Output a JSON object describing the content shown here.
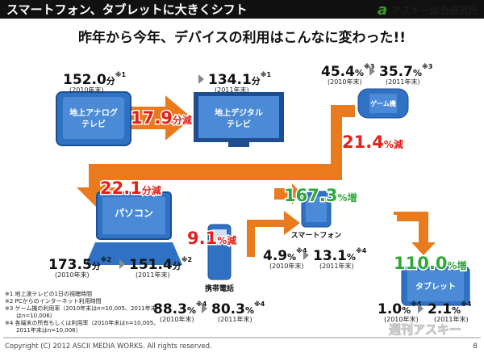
{
  "header": {
    "title": "スマートフォン、タブレットに大きくシフト",
    "brand": "アスキー総合研究所"
  },
  "subtitle": "昨年から今年、デバイスの利用はこんなに変わった!!",
  "stats": [
    {
      "value": "152.0",
      "unit": "分",
      "note": "※1",
      "period": "(2010年末)"
    },
    {
      "value": "134.1",
      "unit": "分",
      "note": "※1",
      "period": "(2011年末)"
    },
    {
      "value": "45.4",
      "unit": "%",
      "note": "※3",
      "period": "(2010年末)"
    },
    {
      "value": "35.7",
      "unit": "%",
      "note": "※3",
      "period": "(2011年末)"
    },
    {
      "value": "173.5",
      "unit": "分",
      "note": "※2",
      "period": "(2010年末)"
    },
    {
      "value": "151.4",
      "unit": "分",
      "note": "※2",
      "period": "(2011年末)"
    },
    {
      "value": "4.9",
      "unit": "%",
      "note": "※4",
      "period": "(2010年末)"
    },
    {
      "value": "13.1",
      "unit": "%",
      "note": "※4",
      "period": "(2011年末)"
    },
    {
      "value": "88.3",
      "unit": "%",
      "note": "※4",
      "period": "(2010年末)"
    },
    {
      "value": "80.3",
      "unit": "%",
      "note": "※4",
      "period": "(2011年末)"
    },
    {
      "value": "1.0",
      "unit": "%",
      "note": "※4",
      "period": "(2010年末)"
    },
    {
      "value": "2.1",
      "unit": "%",
      "note": "※4",
      "period": "(2011年末)"
    }
  ],
  "changes": [
    {
      "value": "17.9",
      "unit": "分減"
    },
    {
      "value": "21.4",
      "unit": "%減"
    },
    {
      "value": "22.1",
      "unit": "分減"
    },
    {
      "value": "9.1",
      "unit": "%減"
    },
    {
      "value": "167.3",
      "unit": "%増"
    },
    {
      "value": "110.0",
      "unit": "%増"
    }
  ],
  "devices": [
    {
      "label": [
        "地上アナログ",
        "テレビ"
      ]
    },
    {
      "label": [
        "地上デジタル",
        "テレビ"
      ]
    },
    {
      "label": [
        "ゲーム機"
      ]
    },
    {
      "label": [
        "パソコン"
      ]
    },
    {
      "label": [
        "携帯電話"
      ]
    },
    {
      "label": [
        "スマートフォン"
      ]
    },
    {
      "label": [
        "タブレット"
      ]
    }
  ],
  "notes": [
    "※1 地上波テレビの1日の視聴時間",
    "※2 PCからのインターネット利用時間",
    "※3 ゲーム機の利用率（2010年末はn=10,005、2011年末",
    "　　はn=10,006）",
    "※4 各端末の所有もしくは利用率（2010年末はn=10,005、",
    "　　2011年末はn=10,006）"
  ],
  "footer": {
    "copyright": "Copyright (C) 2012 ASCII MEDIA WORKS. All rights reserved.",
    "page": "8"
  },
  "watermark": "週刊アスキー"
}
